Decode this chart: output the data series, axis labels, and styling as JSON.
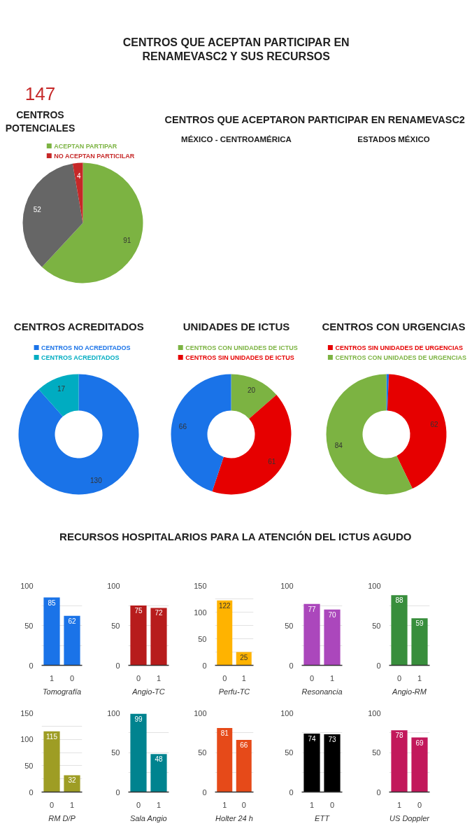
{
  "chart_data": [
    {
      "type": "other",
      "title": "CENTROS QUE ACEPTAN PARTICIPAR EN RENAMEVASC2 Y SUS RECURSOS"
    },
    {
      "type": "pie",
      "title": "CENTROS POTENCIALES",
      "annotations": [
        "147"
      ],
      "categories": [
        "ACEPTAN PARTIPAR",
        null,
        "NO ACEPTAN PARTICILAR"
      ],
      "values": [
        91,
        52,
        4
      ],
      "colors": [
        "#7cb342",
        "#666666",
        "#c62828"
      ],
      "data_labels": true,
      "legend": "top"
    },
    {
      "type": "other",
      "title": "CENTROS QUE ACEPTARON PARTICIPAR EN RENAMEVASC2",
      "annotations": [
        "MÉXICO - CENTROAMÉRICA",
        "ESTADOS MÉXICO"
      ]
    },
    {
      "type": "donut",
      "title": "CENTROS ACREDITADOS",
      "categories": [
        "CENTROS NO ACREDITADOS",
        "CENTROS ACREDITADOS"
      ],
      "values": [
        130,
        17
      ],
      "colors": [
        "#1a73e8",
        "#00acc1"
      ],
      "data_labels": true,
      "legend": "top"
    },
    {
      "type": "donut",
      "title": "UNIDADES DE ICTUS",
      "categories": [
        "CENTROS CON UNIDADES DE ICTUS",
        "CENTROS SIN UNIDADES DE ICTUS",
        null
      ],
      "values": [
        20,
        61,
        66
      ],
      "colors": [
        "#7cb342",
        "#e60000",
        "#1a73e8"
      ],
      "data_labels": true,
      "legend": "top"
    },
    {
      "type": "donut",
      "title": "CENTROS CON URGENCIAS",
      "categories": [
        null,
        "CENTROS SIN UNIDADES DE URGENCIAS",
        "CENTROS CON UNIDADES DE URGENCIAS"
      ],
      "values": [
        1,
        62,
        84
      ],
      "colors": [
        "#1a73e8",
        "#e60000",
        "#7cb342"
      ],
      "value_labels": [
        null,
        "62",
        "84"
      ],
      "legend": "top"
    },
    {
      "type": "other",
      "title": "RECURSOS HOSPITALARIOS PARA LA ATENCIÓN DEL ICTUS AGUDO"
    },
    {
      "type": "bar",
      "xlabel": "Tomografía",
      "categories": [
        "1",
        "0"
      ],
      "values": [
        85,
        62
      ],
      "color": "#1a73e8",
      "ylim": [
        0,
        100
      ],
      "yticks": [
        0,
        {
          "value": 25,
          "label": null
        },
        50,
        {
          "value": 75,
          "label": null
        },
        100
      ],
      "grid": "y",
      "data_labels": true
    },
    {
      "type": "bar",
      "xlabel": "Angio-TC",
      "categories": [
        "0",
        "1"
      ],
      "values": [
        75,
        72
      ],
      "color": "#b71c1c",
      "ylim": [
        0,
        100
      ],
      "yticks": [
        0,
        {
          "value": 25,
          "label": null
        },
        50,
        {
          "value": 75,
          "label": null
        },
        100
      ],
      "grid": "y",
      "data_labels": true
    },
    {
      "type": "bar",
      "xlabel": "Perfu-TC",
      "categories": [
        "0",
        "1"
      ],
      "values": [
        122,
        25
      ],
      "color": "#ffb300",
      "ylim": [
        0,
        150
      ],
      "yticks": [
        0,
        {
          "value": 25,
          "label": null
        },
        50,
        {
          "value": 75,
          "label": null
        },
        100,
        {
          "value": 125,
          "label": null
        },
        150
      ],
      "grid": "y",
      "data_labels": true
    },
    {
      "type": "bar",
      "xlabel": "Resonancia",
      "categories": [
        "0",
        "1"
      ],
      "values": [
        77,
        70
      ],
      "color": "#ab47bc",
      "ylim": [
        0,
        100
      ],
      "yticks": [
        0,
        {
          "value": 25,
          "label": null
        },
        50,
        {
          "value": 75,
          "label": null
        },
        100
      ],
      "grid": "y",
      "data_labels": true
    },
    {
      "type": "bar",
      "xlabel": "Angio-RM",
      "categories": [
        "0",
        "1"
      ],
      "values": [
        88,
        59
      ],
      "color": "#388e3c",
      "ylim": [
        0,
        100
      ],
      "yticks": [
        0,
        {
          "value": 25,
          "label": null
        },
        50,
        {
          "value": 75,
          "label": null
        },
        100
      ],
      "grid": "y",
      "data_labels": true
    },
    {
      "type": "bar",
      "xlabel": "RM D/P",
      "categories": [
        "0",
        "1"
      ],
      "values": [
        115,
        32
      ],
      "color": "#9e9d24",
      "ylim": [
        0,
        150
      ],
      "yticks": [
        0,
        {
          "value": 25,
          "label": null
        },
        50,
        {
          "value": 75,
          "label": null
        },
        100,
        {
          "value": 125,
          "label": null
        },
        150
      ],
      "grid": "y",
      "data_labels": true
    },
    {
      "type": "bar",
      "xlabel": "Sala Angio",
      "categories": [
        "0",
        "1"
      ],
      "values": [
        99,
        48
      ],
      "color": "#00838f",
      "ylim": [
        0,
        100
      ],
      "yticks": [
        0,
        {
          "value": 25,
          "label": null
        },
        50,
        {
          "value": 75,
          "label": null
        },
        100
      ],
      "grid": "y",
      "data_labels": true
    },
    {
      "type": "bar",
      "xlabel": "Holter 24 h",
      "categories": [
        "1",
        "0"
      ],
      "values": [
        81,
        66
      ],
      "color": "#e64a19",
      "ylim": [
        0,
        100
      ],
      "yticks": [
        0,
        {
          "value": 25,
          "label": null
        },
        50,
        {
          "value": 75,
          "label": null
        },
        100
      ],
      "grid": "y",
      "data_labels": true
    },
    {
      "type": "bar",
      "xlabel": "ETT",
      "categories": [
        "1",
        "0"
      ],
      "values": [
        74,
        73
      ],
      "color": "#000000",
      "ylim": [
        0,
        100
      ],
      "yticks": [
        0,
        {
          "value": 25,
          "label": null
        },
        50,
        {
          "value": 75,
          "label": null
        },
        100
      ],
      "grid": "y",
      "data_labels": true
    },
    {
      "type": "bar",
      "xlabel": "US Doppler",
      "categories": [
        "1",
        "0"
      ],
      "values": [
        78,
        69
      ],
      "color": "#c2185b",
      "ylim": [
        0,
        100
      ],
      "yticks": [
        0,
        {
          "value": 25,
          "label": null
        },
        50,
        {
          "value": 75,
          "label": null
        },
        100
      ],
      "grid": "y",
      "data_labels": true
    }
  ]
}
